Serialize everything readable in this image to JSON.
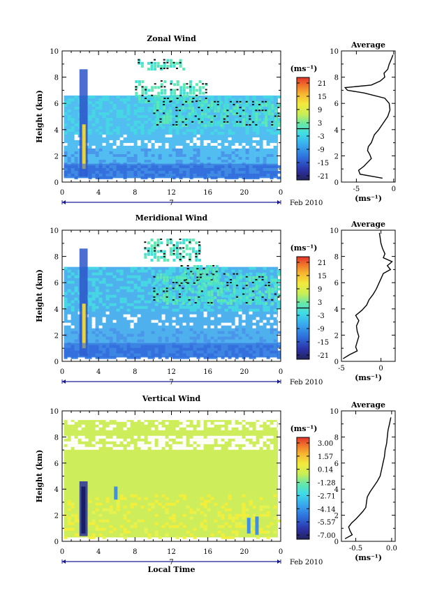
{
  "chart_data": [
    {
      "type": "heatmap",
      "title": "Zonal Wind",
      "ylabel": "Height (km)",
      "xticks": [
        "0",
        "4",
        "8",
        "12",
        "16",
        "20",
        "0"
      ],
      "ylim": [
        0,
        10
      ],
      "yticks": [
        "0",
        "2",
        "4",
        "6",
        "8",
        "10"
      ],
      "date_label": "7",
      "month_label": "Feb 2010",
      "colorbar": {
        "unit": "(ms⁻¹)",
        "ticks": [
          "21",
          "15",
          "9",
          "3",
          "-3",
          "-9",
          "-15",
          "-21"
        ],
        "range": [
          -24,
          24
        ]
      },
      "profile": {
        "title": "Average",
        "xlabel": "(ms⁻¹)",
        "xticks": [
          "-5",
          "0"
        ],
        "xlim": [
          -7,
          0.2
        ],
        "heights": [
          0.3,
          0.6,
          0.9,
          1.2,
          1.5,
          1.8,
          2.1,
          2.4,
          2.7,
          3.0,
          3.3,
          3.6,
          4.0,
          4.5,
          5.0,
          5.5,
          6.0,
          6.4,
          6.8,
          7.0,
          7.2,
          7.4,
          7.7,
          8.0,
          8.3,
          8.6,
          9.0,
          9.4,
          9.7
        ],
        "values": [
          -1.5,
          -4.5,
          -4.7,
          -4.0,
          -3.5,
          -3.0,
          -3.2,
          -3.5,
          -3.4,
          -3.0,
          -2.8,
          -2.6,
          -2.0,
          -1.4,
          -0.8,
          -0.5,
          -0.6,
          -1.2,
          -4.0,
          -6.2,
          -6.5,
          -3.0,
          -1.8,
          -1.2,
          -1.3,
          -0.8,
          -0.6,
          -0.3,
          -0.1
        ]
      }
    },
    {
      "type": "heatmap",
      "title": "Meridional Wind",
      "ylabel": "Height (km)",
      "xticks": [
        "0",
        "4",
        "8",
        "12",
        "16",
        "20",
        "0"
      ],
      "ylim": [
        0,
        10
      ],
      "yticks": [
        "0",
        "2",
        "4",
        "6",
        "8",
        "10"
      ],
      "date_label": "7",
      "month_label": "Feb 2010",
      "colorbar": {
        "unit": "(ms⁻¹)",
        "ticks": [
          "21",
          "15",
          "9",
          "3",
          "-3",
          "-9",
          "-15",
          "-21"
        ],
        "range": [
          -24,
          24
        ]
      },
      "profile": {
        "title": "Average",
        "xlabel": "(ms⁻¹)",
        "xticks": [
          "-5",
          "0"
        ],
        "xlim": [
          -5,
          1.8
        ],
        "heights": [
          0.2,
          0.5,
          0.8,
          1.1,
          1.5,
          1.9,
          2.3,
          2.7,
          3.1,
          3.5,
          3.9,
          4.3,
          4.7,
          5.1,
          5.5,
          5.9,
          6.3,
          6.7,
          7.0,
          7.3,
          7.6,
          7.9,
          8.2,
          8.6,
          9.0,
          9.4,
          9.8
        ],
        "values": [
          -4.8,
          -4.0,
          -3.0,
          -3.2,
          -3.0,
          -2.8,
          -3.0,
          -3.1,
          -2.8,
          -3.2,
          -2.4,
          -1.8,
          -1.5,
          -1.0,
          -0.6,
          -0.3,
          0.0,
          0.3,
          1.2,
          0.8,
          1.4,
          0.3,
          0.5,
          0.2,
          0.0,
          -0.1,
          -0.2
        ]
      }
    },
    {
      "type": "heatmap",
      "title": "Vertical Wind",
      "ylabel": "Height (km)",
      "xlabel": "Local Time",
      "xticks": [
        "0",
        "4",
        "8",
        "12",
        "16",
        "20",
        "0"
      ],
      "ylim": [
        0,
        10
      ],
      "yticks": [
        "0",
        "2",
        "4",
        "6",
        "8",
        "10"
      ],
      "date_label": "7",
      "month_label": "Feb 2010",
      "colorbar": {
        "unit": "(ms⁻¹)",
        "ticks": [
          "3.00",
          "1.57",
          "0.14",
          "-1.28",
          "-2.71",
          "-4.14",
          "-5.57",
          "-7.00"
        ],
        "range": [
          -8,
          4
        ]
      },
      "profile": {
        "title": "Average",
        "xlabel": "(ms⁻¹)",
        "xticks": [
          "-0.5",
          "0.0"
        ],
        "xlim": [
          -0.7,
          0.05
        ],
        "heights": [
          0.2,
          0.5,
          0.8,
          1.1,
          1.4,
          1.7,
          2.0,
          2.3,
          2.6,
          3.0,
          3.4,
          3.8,
          4.2,
          4.6,
          5.0,
          5.5,
          6.0,
          6.5,
          7.0,
          7.5,
          8.0,
          8.5,
          9.0,
          9.5
        ],
        "values": [
          -0.65,
          -0.55,
          -0.58,
          -0.6,
          -0.56,
          -0.5,
          -0.45,
          -0.4,
          -0.36,
          -0.35,
          -0.34,
          -0.3,
          -0.25,
          -0.2,
          -0.16,
          -0.14,
          -0.12,
          -0.1,
          -0.09,
          -0.07,
          -0.06,
          -0.05,
          -0.03,
          -0.01
        ]
      }
    }
  ],
  "colors": {
    "scale": [
      "#2b2e8f",
      "#2f47c9",
      "#2d7ee6",
      "#3cb7f0",
      "#3fe0e6",
      "#55e6b0",
      "#c8ee5a",
      "#f2ee3a",
      "#f7c230",
      "#f2862a",
      "#e8402a"
    ],
    "zonal_bg": "#52bdf0",
    "meridional_bg": "#4fb0ee",
    "vertical_bg": "#cdee5a"
  }
}
